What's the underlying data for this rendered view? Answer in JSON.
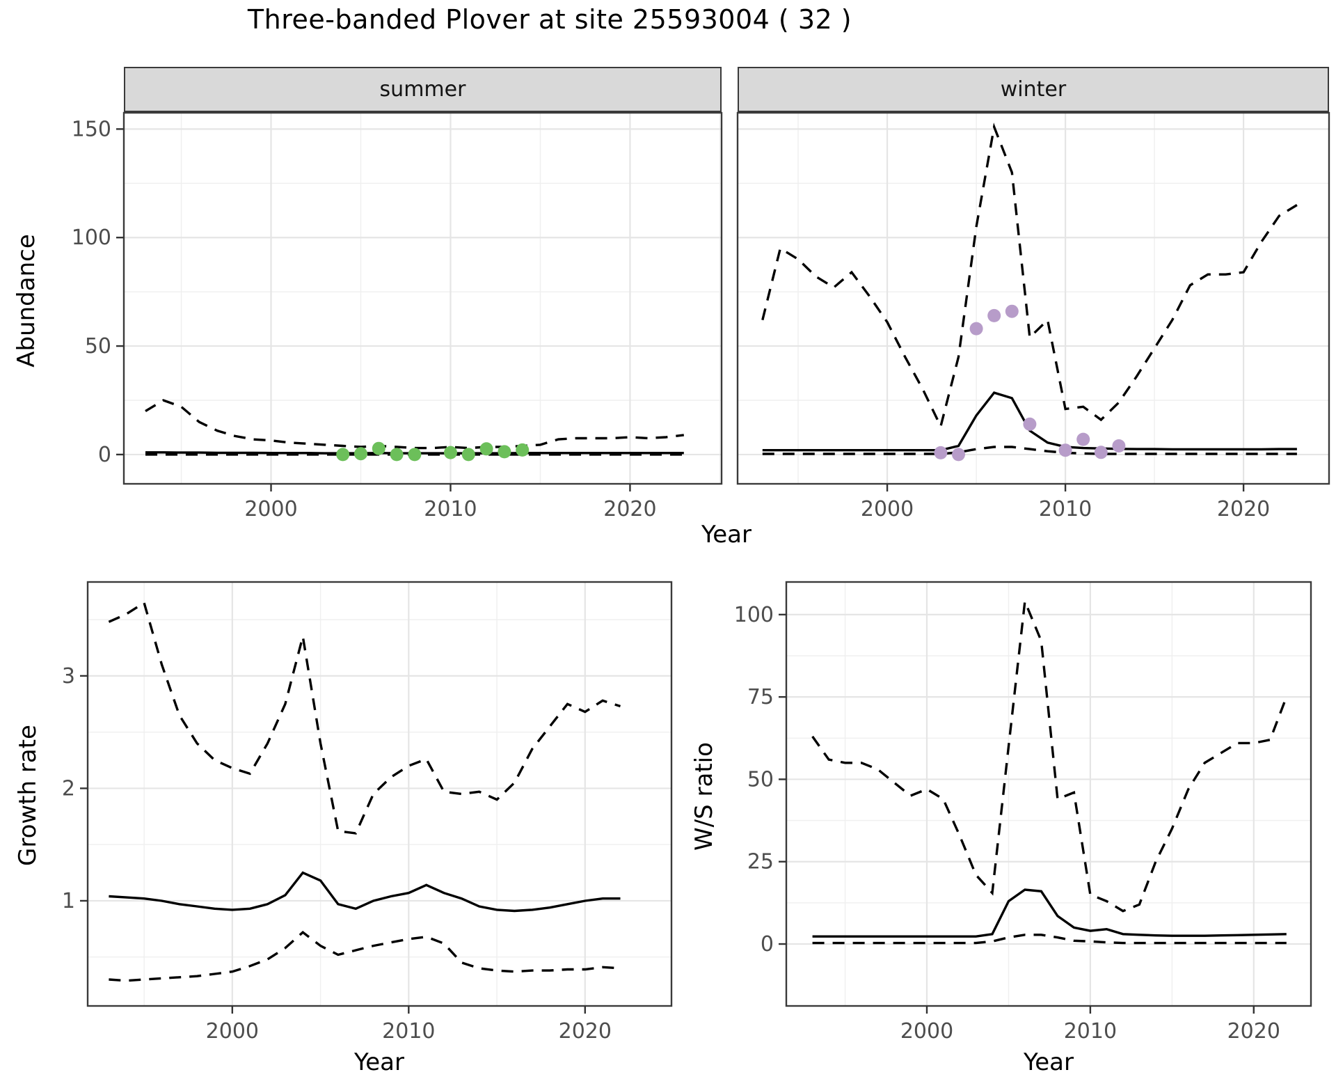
{
  "title": "Three-banded Plover at site 25593004 ( 32 )",
  "facets": {
    "summer_label": "summer",
    "winter_label": "winter"
  },
  "axis_titles": {
    "abundance": "Abundance",
    "growth": "Growth rate",
    "ws": "W/S ratio",
    "year": "Year"
  },
  "colors": {
    "summer_points": "#6cbf5a",
    "winter_points": "#b79cc9",
    "line": "#000000",
    "grid_major": "#e5e5e5",
    "grid_minor": "#efefef",
    "panel_border": "#3a3a3a",
    "tick_text": "#4d4d4d",
    "strip_bg": "#d9d9d9"
  },
  "chart_data": [
    {
      "id": "abundance_summer",
      "type": "line",
      "facet": "summer",
      "ylabel": "Abundance",
      "xlabel": "Year",
      "x": [
        1993,
        1994,
        1995,
        1996,
        1997,
        1998,
        1999,
        2000,
        2001,
        2002,
        2003,
        2004,
        2005,
        2006,
        2007,
        2008,
        2009,
        2010,
        2011,
        2012,
        2013,
        2014,
        2015,
        2016,
        2017,
        2018,
        2019,
        2020,
        2021,
        2022,
        2023
      ],
      "series": [
        {
          "name": "upper_ci",
          "style": "dashed",
          "values": [
            20,
            25,
            22,
            15,
            11,
            8.5,
            7,
            6.5,
            5.5,
            5,
            4.5,
            4,
            3.5,
            4,
            3.5,
            3,
            3,
            3.5,
            3,
            3.5,
            3.5,
            4,
            4.5,
            7,
            7.5,
            7.5,
            7.5,
            8,
            7.5,
            8,
            9
          ]
        },
        {
          "name": "median",
          "style": "solid",
          "values": [
            1,
            1,
            0.9,
            0.9,
            0.8,
            0.8,
            0.8,
            0.7,
            0.7,
            0.7,
            0.6,
            0.6,
            0.6,
            0.7,
            0.6,
            0.6,
            0.6,
            0.6,
            0.6,
            0.6,
            0.6,
            0.7,
            0.7,
            0.7,
            0.7,
            0.7,
            0.7,
            0.7,
            0.7,
            0.7,
            0.7
          ]
        },
        {
          "name": "lower_ci",
          "style": "dashed",
          "values": [
            0,
            0,
            0,
            0,
            0,
            0,
            0,
            0,
            0,
            0,
            0,
            0,
            0,
            0,
            0,
            0,
            0,
            0,
            0,
            0,
            0,
            0,
            0,
            0,
            0,
            0,
            0,
            0,
            0,
            0,
            0
          ]
        }
      ],
      "points": {
        "name": "observed_summer_counts",
        "xy": [
          [
            2004,
            0
          ],
          [
            2005,
            0.4
          ],
          [
            2006,
            2.8
          ],
          [
            2007,
            0
          ],
          [
            2008,
            0
          ],
          [
            2010,
            0.9
          ],
          [
            2011,
            0
          ],
          [
            2012,
            2.6
          ],
          [
            2013,
            1.3
          ],
          [
            2014,
            2.1
          ]
        ]
      },
      "xticks": [
        2000,
        2010,
        2020
      ],
      "minor_xticks": [
        1995,
        2005,
        2015,
        2025
      ],
      "yticks": [
        0,
        50,
        100,
        150
      ],
      "minor_yticks": [
        25,
        75,
        125
      ],
      "xlim": [
        1991.8,
        2025.1
      ],
      "ylim": [
        -13.5,
        157.5
      ]
    },
    {
      "id": "abundance_winter",
      "type": "line",
      "facet": "winter",
      "ylabel": "Abundance",
      "xlabel": "Year",
      "x": [
        1993,
        1994,
        1995,
        1996,
        1997,
        1998,
        1999,
        2000,
        2001,
        2002,
        2003,
        2004,
        2005,
        2006,
        2007,
        2008,
        2009,
        2010,
        2011,
        2012,
        2013,
        2014,
        2015,
        2016,
        2017,
        2018,
        2019,
        2020,
        2021,
        2022,
        2023
      ],
      "series": [
        {
          "name": "upper_ci",
          "style": "dashed",
          "values": [
            62,
            95,
            90,
            82,
            77,
            84,
            73,
            61,
            45,
            30,
            13,
            45,
            105,
            151,
            130,
            54,
            62,
            21,
            22,
            16,
            24,
            36,
            49,
            62,
            78,
            83,
            83,
            84,
            98,
            110,
            115
          ]
        },
        {
          "name": "median",
          "style": "solid",
          "values": [
            2,
            2,
            2,
            2,
            2,
            2,
            2,
            2,
            2,
            2,
            2,
            4,
            18,
            28.5,
            26,
            11,
            5.5,
            3.5,
            3,
            2.8,
            2.6,
            2.5,
            2.5,
            2.4,
            2.4,
            2.4,
            2.4,
            2.4,
            2.4,
            2.5,
            2.5
          ]
        },
        {
          "name": "lower_ci",
          "style": "dashed",
          "values": [
            0.3,
            0.3,
            0.3,
            0.3,
            0.3,
            0.3,
            0.3,
            0.3,
            0.3,
            0.3,
            0.3,
            1,
            2.5,
            3.5,
            3.5,
            2.5,
            1.5,
            0.8,
            0.5,
            0.3,
            0.3,
            0.3,
            0.3,
            0.3,
            0.3,
            0.3,
            0.3,
            0.3,
            0.3,
            0.3,
            0.3
          ]
        }
      ],
      "points": {
        "name": "observed_winter_counts",
        "xy": [
          [
            2003,
            0.8
          ],
          [
            2004,
            0
          ],
          [
            2005,
            58
          ],
          [
            2006,
            64
          ],
          [
            2007,
            66
          ],
          [
            2008,
            14
          ],
          [
            2010,
            2
          ],
          [
            2011,
            7
          ],
          [
            2012,
            1
          ],
          [
            2013,
            4
          ]
        ]
      },
      "xticks": [
        2000,
        2010,
        2020
      ],
      "minor_xticks": [
        1995,
        2005,
        2015
      ],
      "yticks": [
        0,
        50,
        100,
        150
      ],
      "minor_yticks": [
        25,
        75,
        125
      ],
      "xlim": [
        1991.6,
        2024.8
      ],
      "ylim": [
        -13.5,
        157.5
      ]
    },
    {
      "id": "growth_rate",
      "type": "line",
      "facet": null,
      "ylabel": "Growth rate",
      "xlabel": "Year",
      "x": [
        1993,
        1994,
        1995,
        1996,
        1997,
        1998,
        1999,
        2000,
        2001,
        2002,
        2003,
        2004,
        2005,
        2006,
        2007,
        2008,
        2009,
        2010,
        2011,
        2012,
        2013,
        2014,
        2015,
        2016,
        2017,
        2018,
        2019,
        2020,
        2021,
        2022
      ],
      "series": [
        {
          "name": "upper_ci",
          "style": "dashed",
          "values": [
            3.48,
            3.55,
            3.65,
            3.1,
            2.65,
            2.4,
            2.25,
            2.18,
            2.13,
            2.4,
            2.75,
            3.35,
            2.4,
            1.62,
            1.6,
            1.95,
            2.1,
            2.2,
            2.26,
            1.97,
            1.95,
            1.97,
            1.9,
            2.05,
            2.35,
            2.55,
            2.75,
            2.68,
            2.78,
            2.73
          ]
        },
        {
          "name": "median",
          "style": "solid",
          "values": [
            1.04,
            1.03,
            1.02,
            1.0,
            0.97,
            0.95,
            0.93,
            0.92,
            0.93,
            0.97,
            1.05,
            1.25,
            1.18,
            0.97,
            0.93,
            1.0,
            1.04,
            1.07,
            1.14,
            1.07,
            1.02,
            0.95,
            0.92,
            0.91,
            0.92,
            0.94,
            0.97,
            1.0,
            1.02,
            1.02
          ]
        },
        {
          "name": "lower_ci",
          "style": "dashed",
          "values": [
            0.3,
            0.29,
            0.3,
            0.31,
            0.32,
            0.33,
            0.35,
            0.37,
            0.42,
            0.48,
            0.58,
            0.72,
            0.6,
            0.52,
            0.56,
            0.6,
            0.63,
            0.66,
            0.68,
            0.62,
            0.45,
            0.4,
            0.38,
            0.37,
            0.38,
            0.38,
            0.39,
            0.39,
            0.41,
            0.4
          ]
        }
      ],
      "points": null,
      "xticks": [
        2000,
        2010,
        2020
      ],
      "minor_xticks": [
        1995,
        2005,
        2015,
        2025
      ],
      "yticks": [
        1,
        2,
        3
      ],
      "minor_yticks": [
        0.5,
        1.5,
        2.5,
        3.5
      ],
      "xlim": [
        1991.8,
        2024.9
      ],
      "ylim": [
        0.065,
        3.835
      ]
    },
    {
      "id": "ws_ratio",
      "type": "line",
      "facet": null,
      "ylabel": "W/S ratio",
      "xlabel": "Year",
      "x": [
        1993,
        1994,
        1995,
        1996,
        1997,
        1998,
        1999,
        2000,
        2001,
        2002,
        2003,
        2004,
        2005,
        2006,
        2007,
        2008,
        2009,
        2010,
        2011,
        2012,
        2013,
        2014,
        2015,
        2016,
        2017,
        2018,
        2019,
        2020,
        2021,
        2022
      ],
      "series": [
        {
          "name": "upper_ci",
          "style": "dashed",
          "values": [
            63,
            56,
            55,
            55,
            53,
            49,
            45,
            47,
            44,
            33,
            21,
            15.5,
            60,
            104,
            92,
            44,
            46,
            15,
            13,
            10,
            12,
            25,
            35,
            47,
            55,
            58,
            61,
            61,
            62,
            75
          ]
        },
        {
          "name": "median",
          "style": "solid",
          "values": [
            2.3,
            2.3,
            2.3,
            2.3,
            2.3,
            2.3,
            2.3,
            2.3,
            2.3,
            2.3,
            2.3,
            3,
            13,
            16.5,
            16,
            8.5,
            5,
            4,
            4.5,
            3,
            2.8,
            2.6,
            2.5,
            2.5,
            2.5,
            2.6,
            2.7,
            2.8,
            2.9,
            3
          ]
        },
        {
          "name": "lower_ci",
          "style": "dashed",
          "values": [
            0.3,
            0.3,
            0.3,
            0.3,
            0.3,
            0.3,
            0.3,
            0.3,
            0.3,
            0.3,
            0.3,
            0.8,
            2,
            2.8,
            2.8,
            2,
            1,
            0.8,
            0.5,
            0.3,
            0.3,
            0.3,
            0.3,
            0.3,
            0.3,
            0.3,
            0.3,
            0.3,
            0.3,
            0.3
          ]
        }
      ],
      "points": null,
      "xticks": [
        2000,
        2010,
        2020
      ],
      "minor_xticks": [
        1995,
        2005,
        2015
      ],
      "yticks": [
        0,
        25,
        50,
        75,
        100
      ],
      "minor_yticks": [
        12.5,
        37.5,
        62.5,
        87.5
      ],
      "xlim": [
        1991.4,
        2023.5
      ],
      "ylim": [
        -18.8,
        109.9
      ]
    }
  ]
}
